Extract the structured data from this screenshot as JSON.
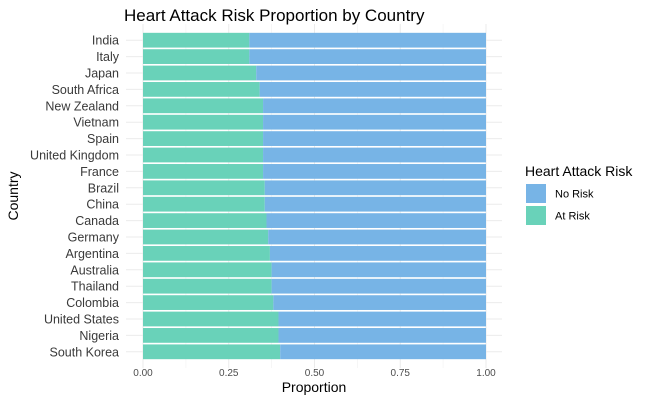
{
  "chart_data": {
    "type": "bar",
    "orientation": "horizontal",
    "stacked": true,
    "title": "Heart Attack Risk Proportion by Country",
    "xlabel": "Proportion",
    "ylabel": "Country",
    "xlim": [
      0,
      1
    ],
    "xticks": [
      "0.00",
      "0.25",
      "0.50",
      "0.75",
      "1.00"
    ],
    "grid": true,
    "legend": {
      "title": "Heart Attack Risk",
      "position": "right"
    },
    "categories": [
      "India",
      "Italy",
      "Japan",
      "South Africa",
      "New Zealand",
      "Vietnam",
      "Spain",
      "United Kingdom",
      "France",
      "Brazil",
      "China",
      "Canada",
      "Germany",
      "Argentina",
      "Australia",
      "Thailand",
      "Colombia",
      "United States",
      "Nigeria",
      "South Korea"
    ],
    "series": [
      {
        "name": "At Risk",
        "color": "#69d2b9",
        "values": [
          0.31,
          0.31,
          0.33,
          0.34,
          0.35,
          0.35,
          0.35,
          0.35,
          0.35,
          0.355,
          0.355,
          0.36,
          0.365,
          0.37,
          0.375,
          0.375,
          0.38,
          0.395,
          0.395,
          0.4
        ]
      },
      {
        "name": "No Risk",
        "color": "#77b4e6",
        "values": [
          0.69,
          0.69,
          0.67,
          0.66,
          0.65,
          0.65,
          0.65,
          0.65,
          0.65,
          0.645,
          0.645,
          0.64,
          0.635,
          0.63,
          0.625,
          0.625,
          0.62,
          0.605,
          0.605,
          0.6
        ]
      }
    ],
    "legend_order": [
      "No Risk",
      "At Risk"
    ]
  }
}
